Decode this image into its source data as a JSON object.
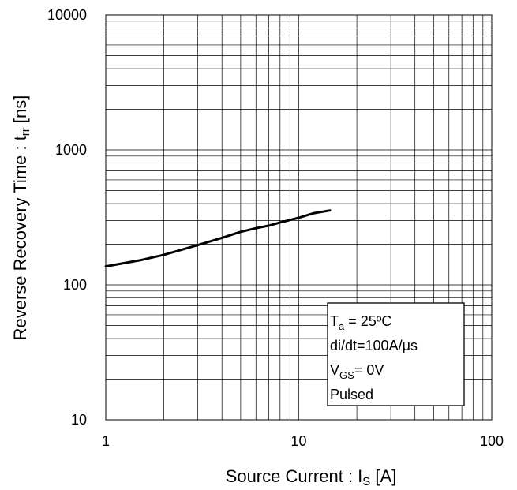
{
  "chart_data": {
    "type": "line",
    "xscale": "log",
    "yscale": "log",
    "xlim": [
      1,
      100
    ],
    "ylim": [
      10,
      10000
    ],
    "grid": true,
    "xlabel": {
      "main": "Source Current : I",
      "sub": "S",
      "unit": " [A]"
    },
    "ylabel": {
      "main": "Reverse Recovery Time : t",
      "sub": "rr",
      "unit": " [ns]"
    },
    "xticks": [
      {
        "value": 1,
        "label": "1"
      },
      {
        "value": 10,
        "label": "10"
      },
      {
        "value": 100,
        "label": "100"
      }
    ],
    "yticks": [
      {
        "value": 10,
        "label": "10"
      },
      {
        "value": 100,
        "label": "100"
      },
      {
        "value": 1000,
        "label": "1000"
      },
      {
        "value": 10000,
        "label": "10000"
      }
    ],
    "series": [
      {
        "x": [
          1,
          1.5,
          2,
          3,
          4,
          5,
          6,
          7,
          8,
          10,
          12,
          14.5
        ],
        "y": [
          137,
          152,
          167,
          197,
          223,
          247,
          263,
          275,
          290,
          314,
          340,
          356
        ]
      }
    ],
    "annotation": {
      "lines": [
        {
          "main": "T",
          "sub": "a",
          "rest": " = 25ºC"
        },
        {
          "main": "di/dt=100A/μs",
          "sub": "",
          "rest": ""
        },
        {
          "main": "V",
          "sub": "GS",
          "rest": "= 0V"
        },
        {
          "main": "Pulsed",
          "sub": "",
          "rest": ""
        }
      ]
    }
  }
}
